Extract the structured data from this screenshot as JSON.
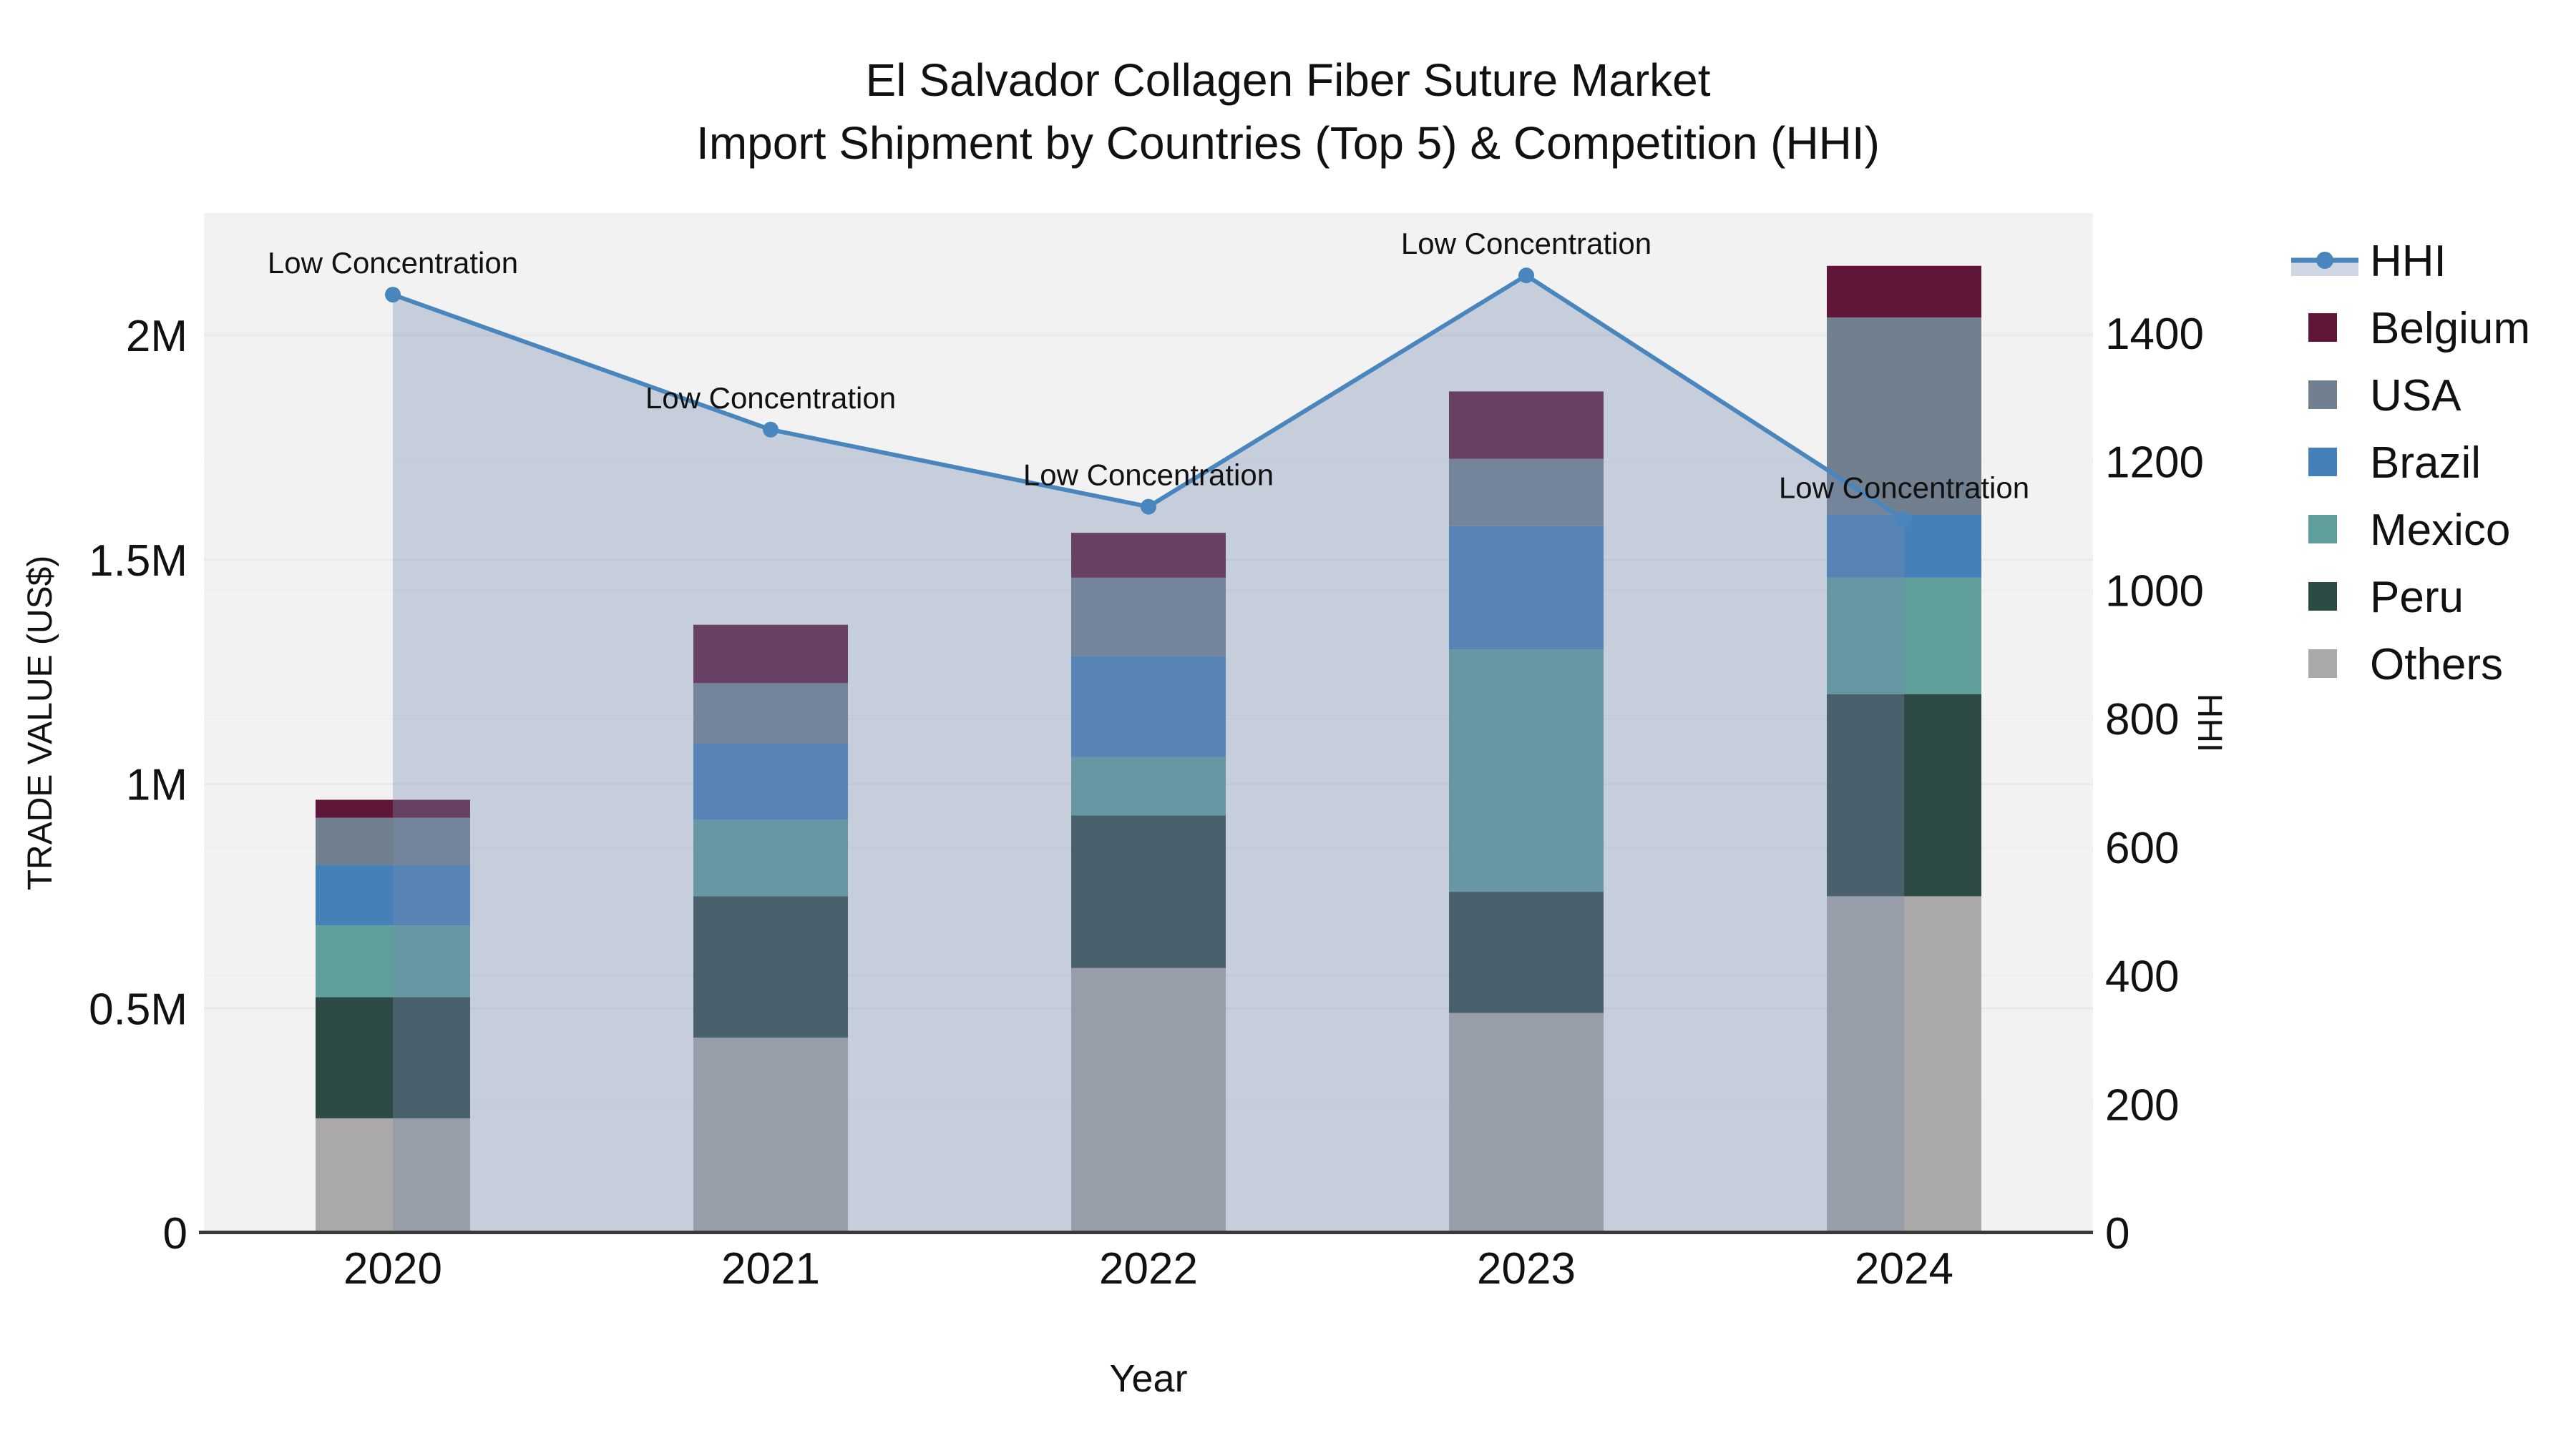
{
  "title": {
    "line1": "El Salvador Collagen Fiber Suture Market",
    "line2": "Import Shipment by Countries (Top 5) & Competition (HHI)"
  },
  "axes": {
    "x_label": "Year",
    "y_left_label": "TRADE VALUE (US$)",
    "y_right_label": "HHI",
    "y_left_ticks": [
      {
        "label": "0",
        "value": 0
      },
      {
        "label": "0.5M",
        "value": 0.5
      },
      {
        "label": "1M",
        "value": 1
      },
      {
        "label": "1.5M",
        "value": 1.5
      },
      {
        "label": "2M",
        "value": 2
      }
    ],
    "y_right_ticks": [
      {
        "label": "0",
        "value": 0
      },
      {
        "label": "200",
        "value": 200
      },
      {
        "label": "400",
        "value": 400
      },
      {
        "label": "600",
        "value": 600
      },
      {
        "label": "800",
        "value": 800
      },
      {
        "label": "1000",
        "value": 1000
      },
      {
        "label": "1200",
        "value": 1200
      },
      {
        "label": "1400",
        "value": 1400
      }
    ]
  },
  "chart_data": {
    "type": "bar",
    "subtype": "stacked-bars-with-line-overlay",
    "categories": [
      "2020",
      "2021",
      "2022",
      "2023",
      "2024"
    ],
    "value_unit": "million US$",
    "stack_order_bottom_to_top": [
      "Others",
      "Peru",
      "Mexico",
      "Brazil",
      "USA",
      "Belgium"
    ],
    "series": [
      {
        "name": "Belgium",
        "color": "#5F1638",
        "values": [
          0.04,
          0.13,
          0.1,
          0.15,
          0.115
        ]
      },
      {
        "name": "USA",
        "color": "#71808F",
        "values": [
          0.105,
          0.135,
          0.175,
          0.15,
          0.44
        ]
      },
      {
        "name": "Brazil",
        "color": "#4581B8",
        "values": [
          0.135,
          0.17,
          0.225,
          0.275,
          0.14
        ]
      },
      {
        "name": "Mexico",
        "color": "#5F9E9B",
        "values": [
          0.16,
          0.17,
          0.13,
          0.54,
          0.26
        ]
      },
      {
        "name": "Peru",
        "color": "#2E4A45",
        "values": [
          0.27,
          0.315,
          0.34,
          0.27,
          0.45
        ]
      },
      {
        "name": "Others",
        "color": "#AAA9A7",
        "values": [
          0.255,
          0.435,
          0.59,
          0.49,
          0.75
        ]
      }
    ],
    "bar_totals": [
      0.965,
      1.355,
      1.56,
      1.875,
      2.155
    ],
    "line_series": {
      "name": "HHI",
      "axis": "right",
      "color": "#4A86BE",
      "area_fill": "rgba(120,139,178,0.36)",
      "values": [
        1460,
        1250,
        1130,
        1490,
        1110
      ],
      "annotations": [
        "Low Concentration",
        "Low Concentration",
        "Low Concentration",
        "Low Concentration",
        "Low Concentration"
      ]
    },
    "y_left_range": [
      0,
      2.27
    ],
    "y_right_range": [
      0,
      1587
    ],
    "grid": true,
    "legend_position": "right-outside"
  },
  "legend": {
    "items": [
      {
        "label": "HHI",
        "type": "line",
        "color": "#4A86BE",
        "fill": "#CED5E3"
      },
      {
        "label": "Belgium",
        "type": "patch",
        "color": "#5F1638"
      },
      {
        "label": "USA",
        "type": "patch",
        "color": "#71808F"
      },
      {
        "label": "Brazil",
        "type": "patch",
        "color": "#4581B8"
      },
      {
        "label": "Mexico",
        "type": "patch",
        "color": "#5F9E9B"
      },
      {
        "label": "Peru",
        "type": "patch",
        "color": "#2E4A45"
      },
      {
        "label": "Others",
        "type": "patch",
        "color": "#AAA9A7"
      }
    ]
  },
  "style": {
    "plot_bg": "#f2f2f3",
    "grid_major": "#e7e9ea",
    "grid_minor": "#edeef0",
    "spine": "#3a3a3a",
    "text": "#111111"
  }
}
